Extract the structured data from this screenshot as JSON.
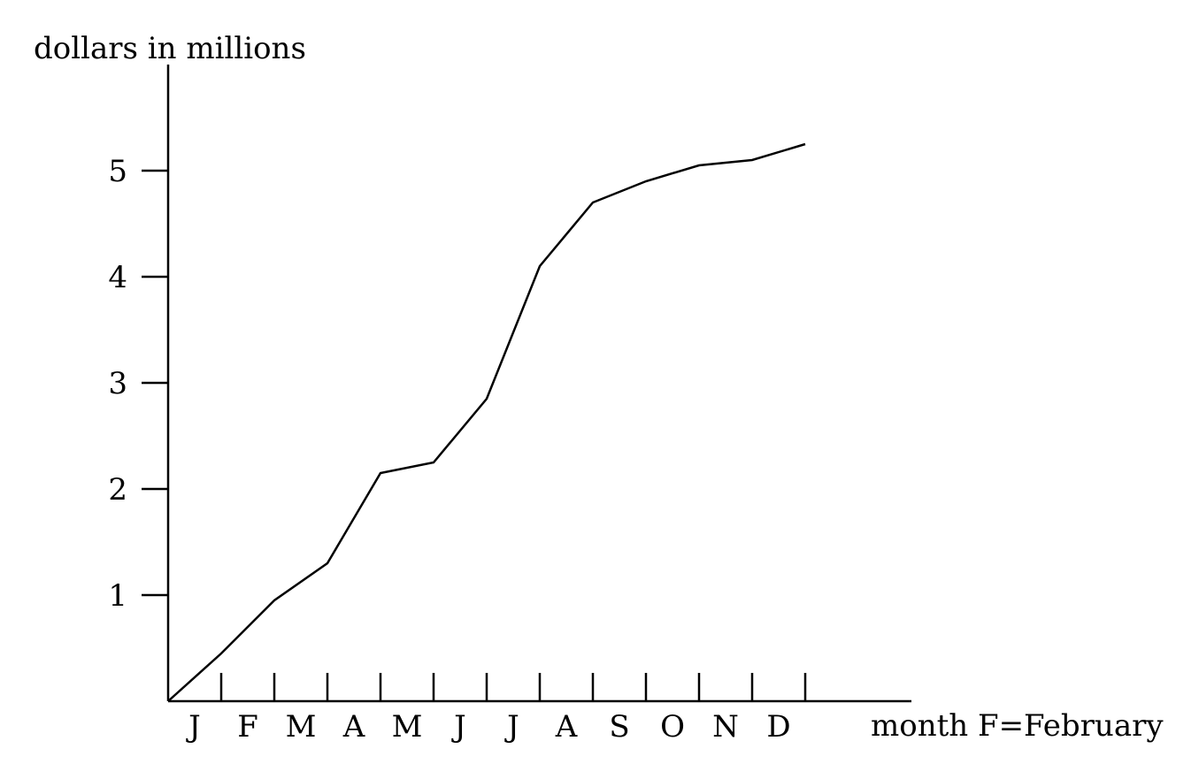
{
  "chart_data": {
    "type": "line",
    "title": "",
    "ylabel": "dollars in millions",
    "xlabel": "month F=February",
    "categories": [
      "J",
      "F",
      "M",
      "A",
      "M",
      "J",
      "J",
      "A",
      "S",
      "O",
      "N",
      "D"
    ],
    "yticks": [
      "1",
      "2",
      "3",
      "4",
      "5"
    ],
    "ylim": [
      0,
      6
    ],
    "grid": false,
    "series": [
      {
        "x": [
          0,
          1,
          2,
          3,
          4,
          5,
          6,
          7,
          8,
          9,
          10,
          11,
          12
        ],
        "values": [
          0,
          0.45,
          0.95,
          1.3,
          2.15,
          2.25,
          2.85,
          4.1,
          4.7,
          4.9,
          5.05,
          5.1,
          5.25
        ]
      }
    ]
  }
}
